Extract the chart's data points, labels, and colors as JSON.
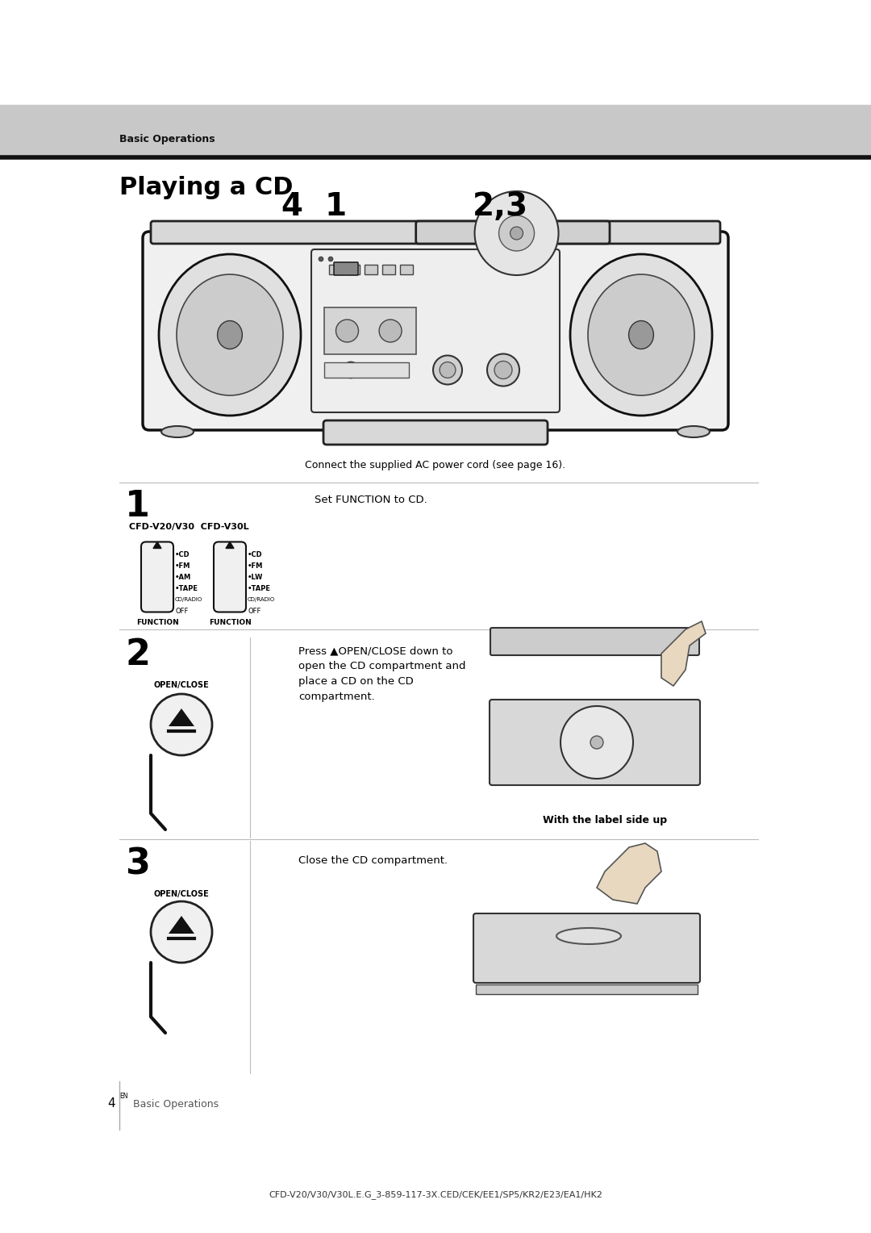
{
  "page_width": 10.8,
  "page_height": 15.28,
  "bg_color": "#ffffff",
  "header_band_color": "#c8c8c8",
  "header_text": "Basic Operations",
  "title": "Playing a CD",
  "connect_text": "Connect the supplied AC power cord (see page 16).",
  "step1_text": "Set FUNCTION to CD.",
  "step2_text1": "Press ▲OPEN/CLOSE down to",
  "step2_text2": "open the CD compartment and",
  "step2_text3": "place a CD on the CD",
  "step2_text4": "compartment.",
  "with_label": "With the label side up",
  "step3_text": "Close the CD compartment.",
  "page_label": "Basic Operations",
  "bottom_text": "CFD-V20/V30/V30L.E.G_3-859-117-3X.CED/CEK/EE1/SP5/KR2/E23/EA1/HK2",
  "cfd_label1": "CFD-V20/V30  CFD-V30L",
  "func_left": [
    "•CD",
    "•FM",
    "•AM",
    "•TAPE",
    "CD/RADIO",
    "OFF"
  ],
  "func_right": [
    "•CD",
    "•FM",
    "•LW",
    "•TAPE",
    "CD/RADIO",
    "OFF"
  ],
  "func_label": "FUNCTION"
}
